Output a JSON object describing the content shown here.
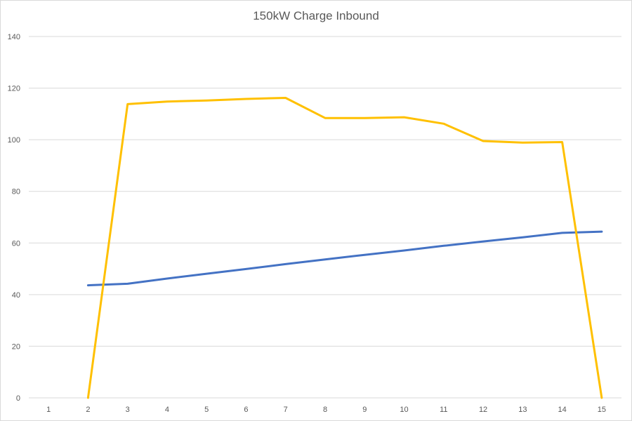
{
  "chart_data": {
    "type": "line",
    "title": "150kW Charge Inbound",
    "xlabel": "",
    "ylabel": "",
    "categories": [
      "1",
      "2",
      "3",
      "4",
      "5",
      "6",
      "7",
      "8",
      "9",
      "10",
      "11",
      "12",
      "13",
      "14",
      "15"
    ],
    "ylim": [
      0,
      140
    ],
    "yticks": [
      0,
      20,
      40,
      60,
      80,
      100,
      120,
      140
    ],
    "grid": true,
    "legend": "none",
    "series": [
      {
        "color": "#4472c4",
        "values": [
          null,
          43.6,
          44.2,
          46.2,
          48.1,
          49.9,
          51.8,
          53.6,
          55.4,
          57.1,
          58.9,
          60.6,
          62.2,
          63.9,
          64.4
        ]
      },
      {
        "color": "#ffc000",
        "values": [
          null,
          0,
          113.8,
          114.8,
          115.2,
          115.8,
          116.2,
          108.4,
          108.4,
          108.7,
          106.2,
          99.5,
          98.9,
          99.1,
          0
        ]
      }
    ]
  }
}
